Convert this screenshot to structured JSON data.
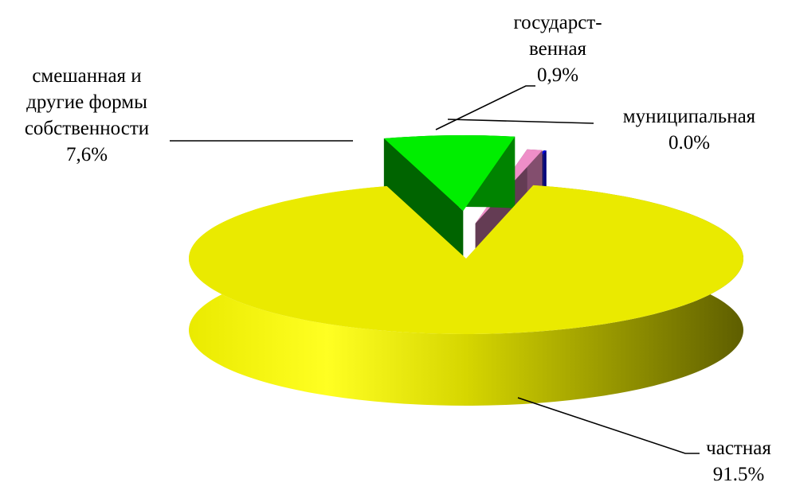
{
  "chart_data": {
    "type": "pie",
    "style": "3d-exploded",
    "slices": [
      {
        "key": "private",
        "label": "частная",
        "value": 91.5,
        "value_label": "91.5%",
        "color": "#eaea00"
      },
      {
        "key": "mixed",
        "label_lines": [
          "смешанная и",
          "другие формы",
          "собственности"
        ],
        "value": 7.6,
        "value_label": "7,6%",
        "color": "#00ee00"
      },
      {
        "key": "state",
        "label_lines": [
          "государст-",
          "венная"
        ],
        "value": 0.9,
        "value_label": "0,9%",
        "color": "#ee8ec8"
      },
      {
        "key": "municipal",
        "label": "муниципальная",
        "value": 0.0,
        "value_label": "0.0%",
        "color": "#0000dd"
      }
    ]
  }
}
